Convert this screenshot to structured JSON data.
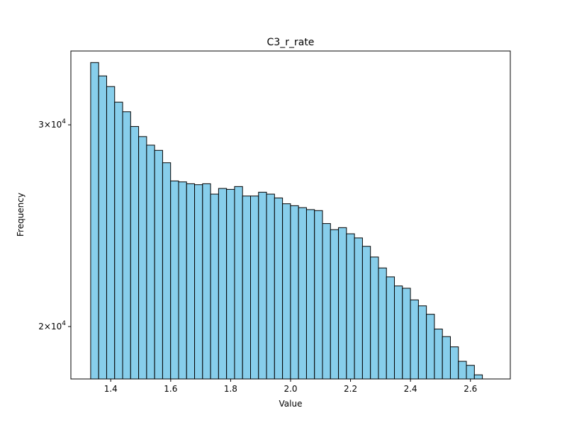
{
  "chart_data": {
    "type": "bar",
    "title": "C3_r_rate",
    "xlabel": "Value",
    "ylabel": "Frequency",
    "y_scale": "log",
    "xlim": [
      1.267,
      2.733
    ],
    "ylim": [
      18000,
      34800
    ],
    "x_ticks": [
      1.4,
      1.6,
      1.8,
      2.0,
      2.2,
      2.4,
      2.6
    ],
    "x_tick_labels": [
      "1.4",
      "1.6",
      "1.8",
      "2.0",
      "2.2",
      "2.4",
      "2.6"
    ],
    "y_ticks": [
      {
        "value": 20000,
        "base": "2",
        "exp": "4"
      },
      {
        "value": 30000,
        "base": "3",
        "exp": "4"
      }
    ],
    "y_tick_symbol": "×10",
    "bin_start": 1.333,
    "bin_width": 0.02667,
    "values": [
      34000,
      33100,
      32400,
      31400,
      30800,
      29900,
      29300,
      28800,
      28500,
      27800,
      26800,
      26750,
      26650,
      26600,
      26650,
      26100,
      26400,
      26350,
      26500,
      26000,
      26000,
      26200,
      26100,
      25900,
      25600,
      25500,
      25400,
      25300,
      25250,
      24600,
      24300,
      24400,
      24100,
      23900,
      23500,
      23000,
      22500,
      22100,
      21700,
      21600,
      21100,
      20850,
      20500,
      19900,
      19600,
      19200,
      18650,
      18500,
      18150,
      17700
    ],
    "colors": {
      "bar_fill": "#87ceeb",
      "bar_edge": "#000000",
      "background": "#ffffff"
    },
    "grid": false,
    "legend": "none"
  }
}
